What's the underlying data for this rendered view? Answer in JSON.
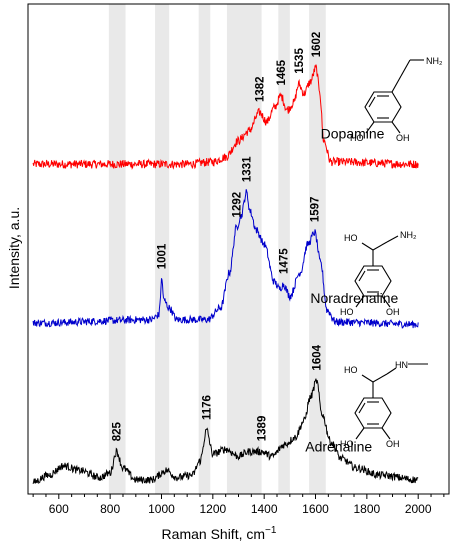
{
  "chart_data": {
    "type": "line",
    "title": "",
    "xlabel": "Raman Shift, cm",
    "xlabel_sup": "−1",
    "ylabel": "Intensity, a.u.",
    "xlim": [
      480,
      2120
    ],
    "ylim": [
      -0.2,
      10.2
    ],
    "x_ticks": [
      600,
      800,
      1000,
      1200,
      1400,
      1600,
      1800,
      2000
    ],
    "x_tick_labels": [
      "600",
      "800",
      "1000",
      "1200",
      "1400",
      "1600",
      "1800",
      "2000"
    ],
    "minor_tick_step": 50,
    "highlight_bands": [
      [
        795,
        860
      ],
      [
        975,
        1030
      ],
      [
        1145,
        1190
      ],
      [
        1255,
        1390
      ],
      [
        1455,
        1500
      ],
      [
        1575,
        1640
      ]
    ],
    "series": [
      {
        "name": "Dopamine",
        "color": "#ff0000",
        "x_range": [
          500,
          2000
        ],
        "baseline": 6.8,
        "noise": 0.09,
        "points": [
          [
            500,
            0
          ],
          [
            1100,
            0
          ],
          [
            1200,
            0.05
          ],
          [
            1250,
            0.15
          ],
          [
            1300,
            0.5
          ],
          [
            1340,
            0.7
          ],
          [
            1382,
            1.1
          ],
          [
            1410,
            0.9
          ],
          [
            1440,
            1.2
          ],
          [
            1465,
            1.45
          ],
          [
            1490,
            1.15
          ],
          [
            1515,
            1.3
          ],
          [
            1535,
            1.7
          ],
          [
            1555,
            1.5
          ],
          [
            1580,
            1.75
          ],
          [
            1602,
            2.05
          ],
          [
            1615,
            1.6
          ],
          [
            1632,
            0.5
          ],
          [
            1660,
            0.05
          ],
          [
            2000,
            0
          ]
        ],
        "peaks": [
          {
            "x": 1382,
            "label": "1382"
          },
          {
            "x": 1465,
            "label": "1465"
          },
          {
            "x": 1535,
            "label": "1535"
          },
          {
            "x": 1602,
            "label": "1602"
          }
        ]
      },
      {
        "name": "Noradrenaline",
        "color": "#0000cc",
        "x_range": [
          500,
          2000
        ],
        "baseline": 3.4,
        "noise": 0.08,
        "points": [
          [
            500,
            0.03
          ],
          [
            960,
            0.1
          ],
          [
            990,
            0.2
          ],
          [
            1001,
            0.95
          ],
          [
            1010,
            0.5
          ],
          [
            1030,
            0.35
          ],
          [
            1060,
            0.1
          ],
          [
            1180,
            0.1
          ],
          [
            1230,
            0.35
          ],
          [
            1265,
            1.1
          ],
          [
            1292,
            2.05
          ],
          [
            1310,
            2.3
          ],
          [
            1331,
            2.8
          ],
          [
            1345,
            2.4
          ],
          [
            1370,
            2.0
          ],
          [
            1400,
            1.7
          ],
          [
            1440,
            0.9
          ],
          [
            1460,
            0.75
          ],
          [
            1475,
            0.85
          ],
          [
            1500,
            0.6
          ],
          [
            1540,
            1.1
          ],
          [
            1570,
            1.7
          ],
          [
            1597,
            1.95
          ],
          [
            1620,
            1.3
          ],
          [
            1645,
            0.3
          ],
          [
            1680,
            0.05
          ],
          [
            2000,
            0
          ]
        ],
        "peaks": [
          {
            "x": 1001,
            "label": "1001"
          },
          {
            "x": 1292,
            "label": "1292"
          },
          {
            "x": 1331,
            "label": "1331"
          },
          {
            "x": 1475,
            "label": "1475"
          },
          {
            "x": 1597,
            "label": "1597"
          }
        ]
      },
      {
        "name": "Adrenaline",
        "color": "#000000",
        "x_range": [
          500,
          2000
        ],
        "baseline": 0,
        "noise": 0.08,
        "points": [
          [
            500,
            0.05
          ],
          [
            560,
            0.2
          ],
          [
            620,
            0.4
          ],
          [
            680,
            0.3
          ],
          [
            760,
            0.15
          ],
          [
            800,
            0.25
          ],
          [
            825,
            0.7
          ],
          [
            850,
            0.35
          ],
          [
            900,
            0.1
          ],
          [
            960,
            0.1
          ],
          [
            1020,
            0.3
          ],
          [
            1060,
            0.15
          ],
          [
            1120,
            0.2
          ],
          [
            1150,
            0.5
          ],
          [
            1176,
            1.15
          ],
          [
            1200,
            0.65
          ],
          [
            1250,
            0.75
          ],
          [
            1300,
            0.6
          ],
          [
            1340,
            0.7
          ],
          [
            1389,
            0.7
          ],
          [
            1430,
            0.6
          ],
          [
            1480,
            0.85
          ],
          [
            1520,
            1.0
          ],
          [
            1555,
            1.35
          ],
          [
            1580,
            1.85
          ],
          [
            1604,
            2.2
          ],
          [
            1625,
            1.5
          ],
          [
            1660,
            0.9
          ],
          [
            1700,
            0.55
          ],
          [
            1760,
            0.35
          ],
          [
            1850,
            0.2
          ],
          [
            2000,
            0.1
          ]
        ],
        "peaks": [
          {
            "x": 825,
            "label": "825"
          },
          {
            "x": 1176,
            "label": "1176"
          },
          {
            "x": 1389,
            "label": "1389"
          },
          {
            "x": 1604,
            "label": "1604"
          }
        ]
      }
    ],
    "molecule_labels": {
      "dopamine": [
        "NH₂",
        "HO",
        "OH"
      ],
      "noradrenaline": [
        "HO",
        "NH₂",
        "HO",
        "OH"
      ],
      "adrenaline": [
        "HO",
        "HN",
        "HO",
        "OH"
      ]
    },
    "grid": false,
    "legend": "none"
  }
}
